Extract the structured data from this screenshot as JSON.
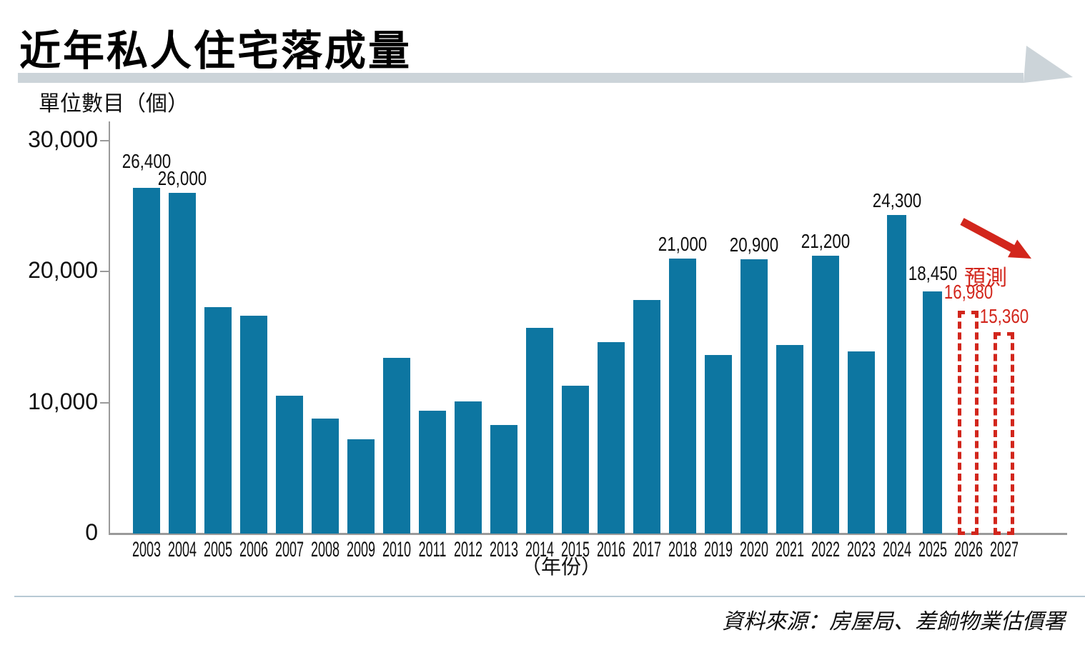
{
  "header": {
    "title": "近年私人住宅落成量"
  },
  "chart_data": {
    "type": "bar",
    "title": "近年私人住宅落成量",
    "ylabel": "單位數目（個）",
    "xlabel": "（年份）",
    "ylim": [
      0,
      30000
    ],
    "yticks": [
      0,
      10000,
      20000,
      30000
    ],
    "ytick_labels": [
      "0",
      "10,000",
      "20,000",
      "30,000"
    ],
    "grid": false,
    "legend": "none",
    "bar_color": "#0d76a1",
    "forecast_color": "#d2261c",
    "forecast_note": "預測",
    "forecast_arrow": "red-down-right-arrow",
    "bars": [
      {
        "year": "2003",
        "value": 26400,
        "label": "26,400",
        "forecast": false
      },
      {
        "year": "2004",
        "value": 26000,
        "label": "26,000",
        "forecast": false
      },
      {
        "year": "2005",
        "value": 17300,
        "label": null,
        "forecast": false
      },
      {
        "year": "2006",
        "value": 16600,
        "label": null,
        "forecast": false
      },
      {
        "year": "2007",
        "value": 10500,
        "label": null,
        "forecast": false
      },
      {
        "year": "2008",
        "value": 8800,
        "label": null,
        "forecast": false
      },
      {
        "year": "2009",
        "value": 7200,
        "label": null,
        "forecast": false
      },
      {
        "year": "2010",
        "value": 13400,
        "label": null,
        "forecast": false
      },
      {
        "year": "2011",
        "value": 9400,
        "label": null,
        "forecast": false
      },
      {
        "year": "2012",
        "value": 10100,
        "label": null,
        "forecast": false
      },
      {
        "year": "2013",
        "value": 8300,
        "label": null,
        "forecast": false
      },
      {
        "year": "2014",
        "value": 15700,
        "label": null,
        "forecast": false
      },
      {
        "year": "2015",
        "value": 11300,
        "label": null,
        "forecast": false
      },
      {
        "year": "2016",
        "value": 14600,
        "label": null,
        "forecast": false
      },
      {
        "year": "2017",
        "value": 17800,
        "label": null,
        "forecast": false
      },
      {
        "year": "2018",
        "value": 21000,
        "label": "21,000",
        "forecast": false
      },
      {
        "year": "2019",
        "value": 13600,
        "label": null,
        "forecast": false
      },
      {
        "year": "2020",
        "value": 20900,
        "label": "20,900",
        "forecast": false
      },
      {
        "year": "2021",
        "value": 14400,
        "label": null,
        "forecast": false
      },
      {
        "year": "2022",
        "value": 21200,
        "label": "21,200",
        "forecast": false
      },
      {
        "year": "2023",
        "value": 13900,
        "label": null,
        "forecast": false
      },
      {
        "year": "2024",
        "value": 24300,
        "label": "24,300",
        "forecast": false
      },
      {
        "year": "2025",
        "value": 18450,
        "label": "18,450",
        "forecast": false
      },
      {
        "year": "2026",
        "value": 16980,
        "label": "16,980",
        "forecast": true
      },
      {
        "year": "2027",
        "value": 15360,
        "label": "15,360",
        "forecast": true
      }
    ]
  },
  "footer": {
    "source": "資料來源：房屋局、差餉物業估價署"
  }
}
